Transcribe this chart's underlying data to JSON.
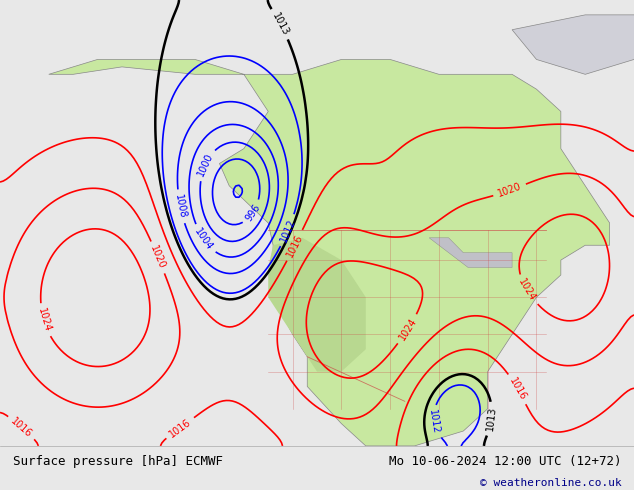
{
  "title_left": "Surface pressure [hPa] ECMWF",
  "title_right": "Mo 10-06-2024 12:00 UTC (12+72)",
  "copyright": "© weatheronline.co.uk",
  "bg_color": "#e8e8e8",
  "land_color": "#c8e8a0",
  "ocean_color": "#ffffff",
  "figsize": [
    6.34,
    4.9
  ],
  "dpi": 100
}
